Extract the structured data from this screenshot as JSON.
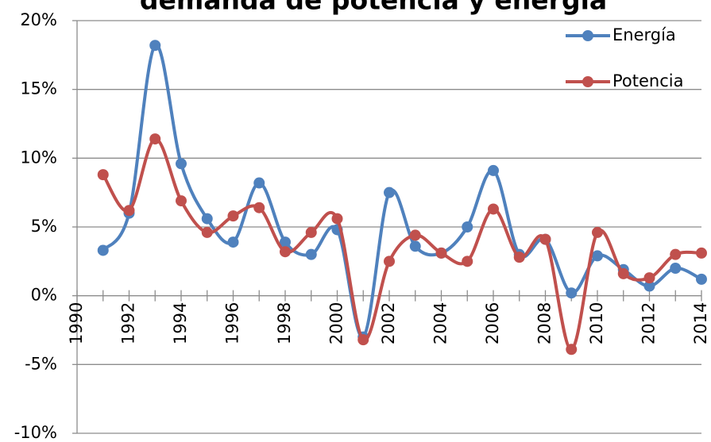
{
  "chart_data": {
    "type": "line",
    "title": "demanda de potencia y energía",
    "x": [
      1991,
      1992,
      1993,
      1994,
      1995,
      1996,
      1997,
      1998,
      1999,
      2000,
      2001,
      2002,
      2003,
      2004,
      2005,
      2006,
      2007,
      2008,
      2009,
      2010,
      2011,
      2012,
      2013,
      2014
    ],
    "series": [
      {
        "name": "Energía",
        "color": "#4f81bd",
        "values": [
          3.3,
          6.0,
          18.2,
          9.6,
          5.6,
          3.9,
          8.2,
          3.9,
          3.0,
          4.8,
          -3.0,
          7.5,
          3.6,
          3.1,
          5.0,
          9.1,
          3.0,
          4.1,
          0.2,
          2.9,
          1.9,
          0.7,
          2.0,
          1.2
        ]
      },
      {
        "name": "Potencia",
        "color": "#c0504d",
        "values": [
          8.8,
          6.2,
          11.4,
          6.9,
          4.6,
          5.8,
          6.4,
          3.2,
          4.6,
          5.6,
          -3.2,
          2.5,
          4.4,
          3.1,
          2.5,
          6.3,
          2.8,
          4.1,
          -3.9,
          4.6,
          1.6,
          1.3,
          3.0,
          3.1
        ]
      }
    ],
    "xlim": [
      1990,
      2014
    ],
    "xticks": [
      1990,
      1992,
      1994,
      1996,
      1998,
      2000,
      2002,
      2004,
      2006,
      2008,
      2010,
      2012,
      2014
    ],
    "ylim": [
      -10,
      20
    ],
    "yticks": [
      {
        "value": -10,
        "label": "-10%"
      },
      {
        "value": -5,
        "label": "-5%"
      },
      {
        "value": 0,
        "label": "0%"
      },
      {
        "value": 5,
        "label": "5%"
      },
      {
        "value": 10,
        "label": "10%"
      },
      {
        "value": 15,
        "label": "15%"
      },
      {
        "value": 20,
        "label": "20%"
      }
    ],
    "grid": true,
    "legend": "top-right",
    "smooth": true
  }
}
